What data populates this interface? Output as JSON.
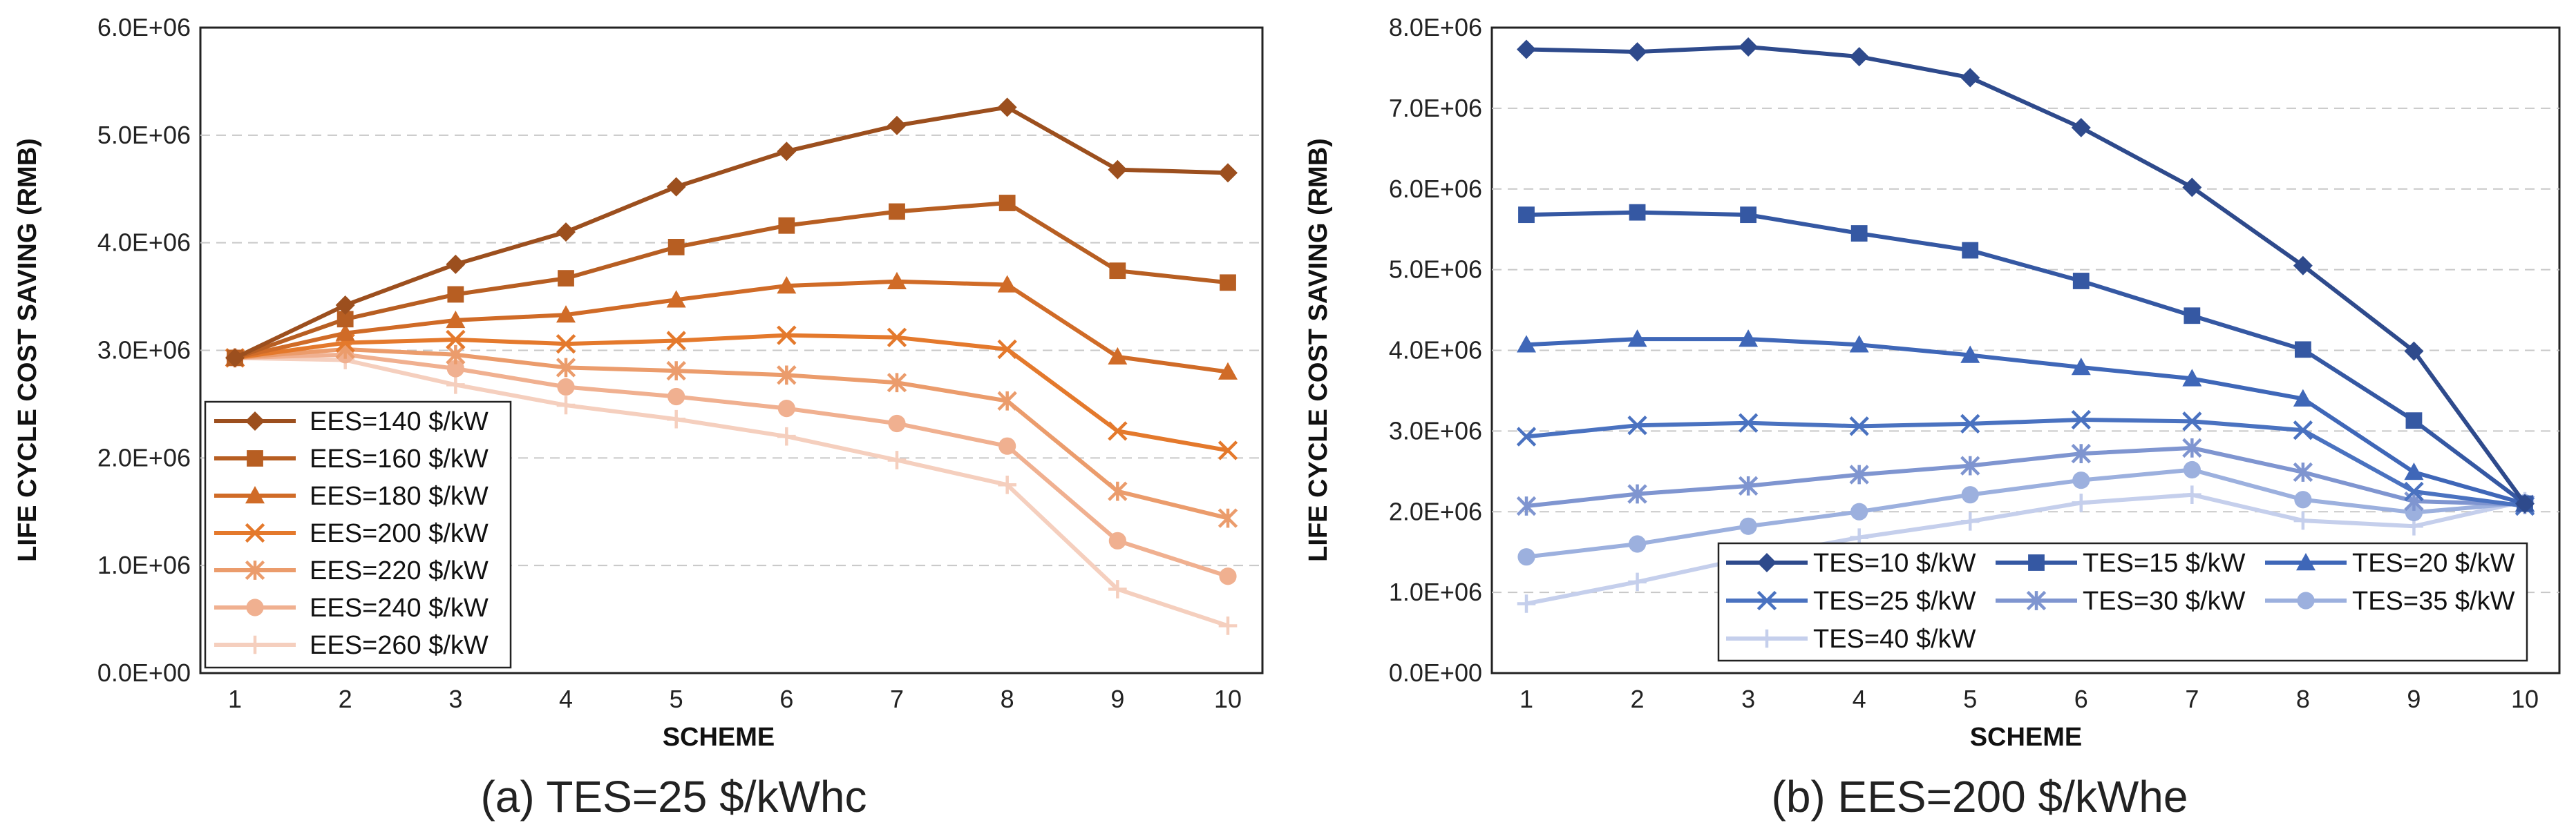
{
  "chart_data": [
    {
      "type": "line",
      "caption": "(a) TES=25 $/kWhc",
      "xlabel": "SCHEME",
      "ylabel": "LIFE CYCLE COST SAVING (RMB)",
      "x": [
        1,
        2,
        3,
        4,
        5,
        6,
        7,
        8,
        9,
        10
      ],
      "ylim": [
        0,
        6000000
      ],
      "yticks": [
        0,
        1000000,
        2000000,
        3000000,
        4000000,
        5000000,
        6000000
      ],
      "ytick_labels": [
        "0.0E+00",
        "1.0E+06",
        "2.0E+06",
        "3.0E+06",
        "4.0E+06",
        "5.0E+06",
        "6.0E+06"
      ],
      "legend_position": "lower-left",
      "grid": "horizontal dashed",
      "series": [
        {
          "name": "EES=140 $/kW",
          "marker": "diamond",
          "color": "#9C4F1E",
          "values": [
            2930000,
            3420000,
            3800000,
            4100000,
            4520000,
            4850000,
            5090000,
            5260000,
            4680000,
            4650000
          ]
        },
        {
          "name": "EES=160 $/kW",
          "marker": "square",
          "color": "#B75E22",
          "values": [
            2930000,
            3290000,
            3520000,
            3670000,
            3960000,
            4160000,
            4290000,
            4370000,
            3740000,
            3630000
          ]
        },
        {
          "name": "EES=180 $/kW",
          "marker": "triangle",
          "color": "#D06B27",
          "values": [
            2930000,
            3160000,
            3280000,
            3330000,
            3470000,
            3600000,
            3640000,
            3610000,
            2940000,
            2800000
          ]
        },
        {
          "name": "EES=200 $/kW",
          "marker": "x",
          "color": "#E4792C",
          "values": [
            2930000,
            3070000,
            3100000,
            3060000,
            3090000,
            3140000,
            3120000,
            3010000,
            2250000,
            2070000
          ]
        },
        {
          "name": "EES=220 $/kW",
          "marker": "asterisk",
          "color": "#EB9C6C",
          "values": [
            2930000,
            3010000,
            2960000,
            2840000,
            2810000,
            2770000,
            2700000,
            2530000,
            1690000,
            1440000
          ]
        },
        {
          "name": "EES=240 $/kW",
          "marker": "circle",
          "color": "#F0B090",
          "values": [
            2930000,
            2960000,
            2830000,
            2660000,
            2570000,
            2460000,
            2320000,
            2110000,
            1230000,
            900000
          ]
        },
        {
          "name": "EES=260 $/kW",
          "marker": "plus",
          "color": "#F5CFBE",
          "values": [
            2930000,
            2910000,
            2680000,
            2490000,
            2360000,
            2200000,
            1980000,
            1750000,
            780000,
            440000
          ]
        }
      ]
    },
    {
      "type": "line",
      "caption": "(b) EES=200 $/kWhe",
      "xlabel": "SCHEME",
      "ylabel": "LIFE CYCLE COST SAVING (RMB)",
      "x": [
        1,
        2,
        3,
        4,
        5,
        6,
        7,
        8,
        9,
        10
      ],
      "ylim": [
        0,
        8000000
      ],
      "yticks": [
        0,
        1000000,
        2000000,
        3000000,
        4000000,
        5000000,
        6000000,
        7000000,
        8000000
      ],
      "ytick_labels": [
        "0.0E+00",
        "1.0E+06",
        "2.0E+06",
        "3.0E+06",
        "4.0E+06",
        "5.0E+06",
        "6.0E+06",
        "7.0E+06",
        "8.0E+06"
      ],
      "legend_position": "bottom-right",
      "grid": "horizontal dashed",
      "series": [
        {
          "name": "TES=10 $/kW",
          "marker": "diamond",
          "color": "#2E4A8C",
          "values": [
            7730000,
            7700000,
            7760000,
            7640000,
            7380000,
            6760000,
            6020000,
            5050000,
            3990000,
            2100000
          ]
        },
        {
          "name": "TES=15 $/kW",
          "marker": "square",
          "color": "#3558A3",
          "values": [
            5680000,
            5710000,
            5680000,
            5450000,
            5240000,
            4860000,
            4430000,
            4010000,
            3130000,
            2100000
          ]
        },
        {
          "name": "TES=20 $/kW",
          "marker": "triangle",
          "color": "#3F67B8",
          "values": [
            4070000,
            4140000,
            4140000,
            4070000,
            3940000,
            3790000,
            3650000,
            3400000,
            2490000,
            2100000
          ]
        },
        {
          "name": "TES=25 $/kW",
          "marker": "x",
          "color": "#4A72C0",
          "values": [
            2930000,
            3070000,
            3100000,
            3060000,
            3090000,
            3140000,
            3120000,
            3010000,
            2250000,
            2070000
          ]
        },
        {
          "name": "TES=30 $/kW",
          "marker": "asterisk",
          "color": "#7F95D0",
          "values": [
            2070000,
            2220000,
            2320000,
            2460000,
            2570000,
            2720000,
            2790000,
            2490000,
            2130000,
            2090000
          ]
        },
        {
          "name": "TES=35 $/kW",
          "marker": "circle",
          "color": "#9CB0DE",
          "values": [
            1440000,
            1600000,
            1820000,
            2000000,
            2210000,
            2390000,
            2520000,
            2150000,
            1990000,
            2110000
          ]
        },
        {
          "name": "TES=40 $/kW",
          "marker": "plus",
          "color": "#C5CFEC",
          "values": [
            860000,
            1130000,
            1430000,
            1680000,
            1880000,
            2110000,
            2210000,
            1890000,
            1820000,
            2130000
          ]
        }
      ]
    }
  ]
}
